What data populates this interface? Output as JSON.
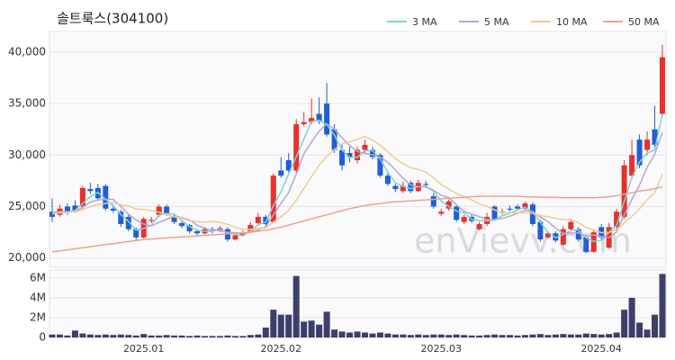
{
  "watermark": "enVievv.com",
  "chart_data": [
    {
      "type": "candlestick",
      "title": "솔트룩스(304100)",
      "categories": [
        null,
        null,
        null,
        null,
        null,
        null,
        null,
        null,
        null,
        null,
        null,
        null,
        "2025.01",
        null,
        null,
        null,
        null,
        null,
        null,
        null,
        null,
        null,
        null,
        null,
        null,
        null,
        null,
        null,
        null,
        null,
        "2025.02",
        null,
        null,
        null,
        null,
        null,
        null,
        null,
        null,
        null,
        null,
        null,
        null,
        null,
        null,
        null,
        null,
        null,
        null,
        null,
        null,
        "2025.03",
        null,
        null,
        null,
        null,
        null,
        null,
        null,
        null,
        null,
        null,
        null,
        null,
        null,
        null,
        null,
        null,
        null,
        null,
        null,
        null,
        "2025.04",
        null,
        null,
        null,
        null,
        null,
        null,
        null,
        null
      ],
      "open": [
        24500,
        24200,
        25000,
        25100,
        25000,
        26700,
        26800,
        27000,
        24800,
        24500,
        24000,
        22800,
        22000,
        23600,
        24200,
        25000,
        24000,
        23400,
        23200,
        22600,
        22400,
        22800,
        22700,
        22800,
        21800,
        22200,
        22500,
        23400,
        24000,
        23500,
        28500,
        29500,
        28500,
        33000,
        33200,
        34000,
        35000,
        32500,
        30500,
        30200,
        29500,
        30500,
        30500,
        30000,
        28000,
        27000,
        26500,
        27300,
        26500,
        27200,
        26000,
        24300,
        24800,
        25000,
        23500,
        24000,
        22800,
        23300,
        25000,
        24500,
        24800,
        25000,
        24800,
        25200,
        23500,
        22000,
        22400,
        21300,
        22800,
        22800,
        22000,
        20600,
        23000,
        21000,
        23000,
        24000,
        28000,
        31500,
        30500,
        32500,
        34000
      ],
      "high": [
        25800,
        25200,
        25300,
        25600,
        27000,
        27300,
        27200,
        27200,
        25200,
        24700,
        24300,
        23000,
        24000,
        24000,
        25200,
        25200,
        24200,
        23600,
        23300,
        22800,
        23000,
        23000,
        23100,
        23000,
        22400,
        22700,
        23500,
        24400,
        24200,
        28200,
        29800,
        30200,
        33500,
        34200,
        35500,
        35600,
        37000,
        33000,
        31000,
        30800,
        30800,
        31500,
        30800,
        30200,
        28300,
        27200,
        27400,
        27500,
        27600,
        27500,
        26300,
        24800,
        25700,
        25200,
        24200,
        24200,
        23500,
        24400,
        25100,
        24800,
        25100,
        25200,
        25500,
        25400,
        23700,
        22600,
        22600,
        23100,
        23800,
        23000,
        22200,
        22800,
        23300,
        23400,
        24800,
        29500,
        31500,
        32000,
        32300,
        34800,
        40700
      ],
      "low": [
        23500,
        24000,
        24200,
        24400,
        24800,
        26200,
        25600,
        24600,
        24400,
        23000,
        22600,
        21700,
        21900,
        23400,
        24000,
        24100,
        23300,
        22900,
        22400,
        22200,
        22300,
        22400,
        22500,
        21600,
        21700,
        22100,
        22400,
        23300,
        23100,
        23400,
        27800,
        28300,
        28300,
        32800,
        33000,
        33000,
        31800,
        30200,
        28500,
        29300,
        29200,
        30200,
        29600,
        27800,
        27000,
        26400,
        26300,
        26300,
        26400,
        26800,
        24800,
        24100,
        24600,
        23500,
        23300,
        23400,
        22700,
        23100,
        23600,
        24200,
        24500,
        24600,
        24600,
        23100,
        21600,
        21900,
        21500,
        21200,
        22600,
        21600,
        20500,
        20500,
        21800,
        20900,
        22800,
        23800,
        27600,
        28700,
        30000,
        30800,
        33800
      ],
      "close": [
        24000,
        24800,
        24500,
        24600,
        26800,
        26500,
        25800,
        24800,
        24600,
        23300,
        22800,
        22000,
        23800,
        23700,
        25000,
        24300,
        23500,
        23100,
        22600,
        22400,
        22800,
        22600,
        22900,
        21800,
        22200,
        22500,
        23200,
        24000,
        23300,
        28000,
        28000,
        28500,
        33000,
        33200,
        33600,
        33300,
        32000,
        30500,
        29000,
        29800,
        30500,
        31000,
        29800,
        28000,
        27200,
        26700,
        27000,
        26500,
        27300,
        27100,
        25000,
        24500,
        25500,
        23700,
        24000,
        23600,
        23300,
        24000,
        23800,
        24500,
        24700,
        24800,
        25300,
        23300,
        21800,
        22400,
        21700,
        22800,
        23500,
        21800,
        20600,
        22500,
        22000,
        23000,
        24500,
        29000,
        30000,
        29000,
        31500,
        31000,
        39500
      ],
      "up_color": "#e8302c",
      "down_color": "#1e5fd8",
      "series": [
        {
          "name": "3 MA",
          "color": "#7dd3d3",
          "values": [
            24300,
            24400,
            24430,
            24630,
            25300,
            25970,
            26370,
            25700,
            25070,
            24230,
            23570,
            22700,
            22870,
            23170,
            24170,
            24330,
            24270,
            23630,
            23070,
            22700,
            22600,
            22600,
            22770,
            22430,
            22300,
            22170,
            22630,
            23230,
            23500,
            25100,
            26430,
            28170,
            29830,
            31570,
            33270,
            33370,
            32970,
            31930,
            30500,
            29770,
            29770,
            30430,
            30430,
            29600,
            28330,
            27300,
            26970,
            26730,
            26930,
            26970,
            26470,
            25530,
            25000,
            24570,
            24400,
            23770,
            23630,
            23630,
            23700,
            24100,
            24330,
            24670,
            24930,
            24470,
            23470,
            22500,
            21970,
            22300,
            22670,
            22700,
            21970,
            21630,
            21700,
            22500,
            23170,
            25500,
            27830,
            29330,
            30170,
            30500,
            34000
          ]
        },
        {
          "name": "5 MA",
          "color": "#b7a4d6",
          "values": [
            24400,
            24500,
            24500,
            24500,
            24940,
            25440,
            25640,
            25700,
            25700,
            25000,
            24260,
            23700,
            23300,
            23120,
            23460,
            23760,
            24060,
            23920,
            23700,
            23180,
            22880,
            22700,
            22660,
            22500,
            22460,
            22400,
            22520,
            22740,
            23040,
            24200,
            25300,
            26360,
            28160,
            30140,
            31260,
            32320,
            33020,
            32520,
            31680,
            30920,
            30360,
            30160,
            30020,
            29820,
            29300,
            28540,
            27740,
            27080,
            26940,
            26920,
            26580,
            26080,
            25880,
            25160,
            24540,
            24260,
            24020,
            23720,
            23740,
            23840,
            24060,
            24360,
            24620,
            24520,
            23980,
            23520,
            22900,
            22400,
            22440,
            22440,
            22080,
            22240,
            22080,
            21980,
            22520,
            24200,
            25700,
            27100,
            28800,
            30100,
            32200
          ]
        },
        {
          "name": "10 MA",
          "color": "#f4c98f",
          "values": [
            24300,
            24400,
            24450,
            24500,
            24700,
            25000,
            25200,
            25300,
            25400,
            25170,
            25050,
            24770,
            24700,
            24610,
            24450,
            24230,
            24000,
            23830,
            23630,
            23540,
            23490,
            23550,
            23460,
            23270,
            22990,
            22810,
            22780,
            22870,
            22940,
            23500,
            24030,
            24620,
            25630,
            26770,
            27910,
            29000,
            29880,
            30530,
            31110,
            31290,
            31540,
            31790,
            31470,
            30950,
            30310,
            29650,
            29150,
            28770,
            28600,
            28330,
            27780,
            27130,
            26700,
            26270,
            25950,
            25640,
            25270,
            25020,
            24670,
            24410,
            24380,
            24410,
            24390,
            24350,
            24130,
            24010,
            23850,
            23730,
            23700,
            23430,
            22960,
            22730,
            22460,
            22480,
            22750,
            23400,
            24050,
            24780,
            25660,
            26340,
            28140
          ]
        },
        {
          "name": "50 MA",
          "color": "#f2a18c",
          "values": [
            20600,
            20700,
            20800,
            20900,
            21000,
            21100,
            21200,
            21300,
            21400,
            21500,
            21600,
            21700,
            21800,
            21850,
            21900,
            21950,
            22000,
            22050,
            22100,
            22150,
            22200,
            22250,
            22300,
            22350,
            22400,
            22450,
            22500,
            22600,
            22700,
            22850,
            23000,
            23200,
            23400,
            23600,
            23800,
            24000,
            24200,
            24400,
            24600,
            24800,
            24950,
            25100,
            25200,
            25300,
            25400,
            25450,
            25500,
            25550,
            25600,
            25650,
            25700,
            25750,
            25800,
            25850,
            25900,
            25950,
            26000,
            26000,
            26000,
            26000,
            26000,
            26000,
            25950,
            25950,
            25900,
            25900,
            25900,
            25850,
            25850,
            25850,
            25850,
            25850,
            25900,
            25950,
            26050,
            26200,
            26350,
            26500,
            26600,
            26750,
            26900
          ]
        }
      ],
      "ylim": [
        19100,
        42000
      ],
      "yticks": [
        {
          "value": 20000,
          "label": "20,000"
        },
        {
          "value": 25000,
          "label": "25,000"
        },
        {
          "value": 30000,
          "label": "30,000"
        },
        {
          "value": 35000,
          "label": "35,000"
        },
        {
          "value": 40000,
          "label": "40,000"
        }
      ],
      "grid": true
    },
    {
      "type": "bar",
      "color": "#3d3f6b",
      "values": [
        300000,
        300000,
        200000,
        700000,
        400000,
        300000,
        250000,
        300000,
        250000,
        300000,
        250000,
        200000,
        350000,
        200000,
        200000,
        250000,
        200000,
        200000,
        150000,
        200000,
        150000,
        150000,
        150000,
        200000,
        150000,
        150000,
        250000,
        300000,
        1000000,
        2800000,
        2300000,
        2300000,
        6200000,
        1600000,
        1700000,
        1300000,
        2600000,
        800000,
        600000,
        500000,
        600000,
        500000,
        400000,
        500000,
        400000,
        300000,
        300000,
        250000,
        300000,
        250000,
        300000,
        300000,
        250000,
        300000,
        250000,
        200000,
        200000,
        250000,
        300000,
        250000,
        250000,
        200000,
        250000,
        300000,
        350000,
        250000,
        300000,
        350000,
        300000,
        300000,
        400000,
        350000,
        300000,
        350000,
        500000,
        2800000,
        4000000,
        1500000,
        800000,
        2300000,
        6400000
      ],
      "ylim": [
        0,
        6800000
      ],
      "yticks": [
        0,
        {
          "value": 2000000,
          "label": "2M"
        },
        {
          "value": 4000000,
          "label": "4M"
        },
        {
          "value": 6000000,
          "label": "6M"
        }
      ],
      "grid": true
    }
  ]
}
